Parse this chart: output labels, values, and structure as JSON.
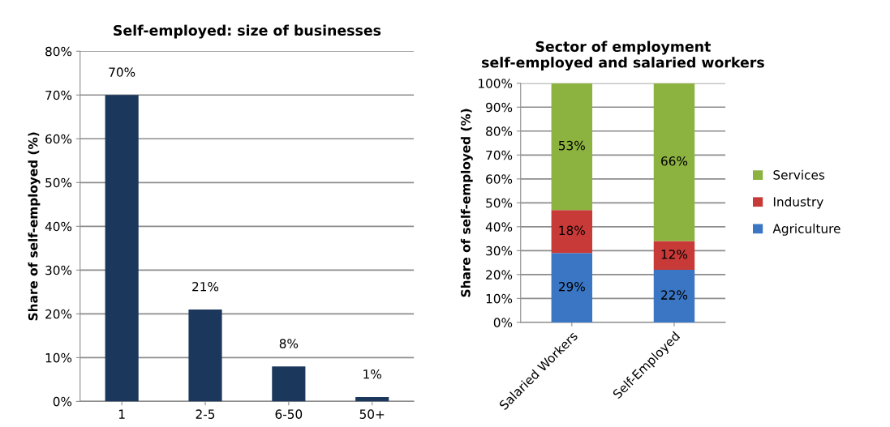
{
  "chart_data": [
    {
      "type": "bar",
      "title": "Self-employed: size of businesses",
      "ylabel": "Share of self-employed (%)",
      "categories": [
        "1",
        "2-5",
        "6-50",
        "50+"
      ],
      "series": [
        {
          "color": "#1b375c",
          "values": [
            70,
            21,
            8,
            1
          ],
          "value_labels": [
            "70%",
            "21%",
            "8%",
            "1%"
          ]
        }
      ],
      "ylim": [
        0,
        80
      ],
      "yticks": [
        {
          "value": 0,
          "label": "0%"
        },
        {
          "value": 10,
          "label": "10%"
        },
        {
          "value": 20,
          "label": "20%"
        },
        {
          "value": 30,
          "label": "30%"
        },
        {
          "value": 40,
          "label": "40%"
        },
        {
          "value": 50,
          "label": "50%"
        },
        {
          "value": 60,
          "label": "60%"
        },
        {
          "value": 70,
          "label": "70%"
        },
        {
          "value": 80,
          "label": "80%"
        }
      ],
      "grid": "y",
      "legend": false
    },
    {
      "type": "bar",
      "title": "Sector of employment\nself-employed and salaried workers",
      "ylabel": "Share of self-employed (%)",
      "categories": [
        "Salaried Workers",
        "Self-Employed"
      ],
      "stacked": true,
      "series": [
        {
          "name": "Agriculture",
          "color": "#3a76c4",
          "values": [
            29,
            22
          ],
          "value_labels": [
            "29%",
            "22%"
          ]
        },
        {
          "name": "Industry",
          "color": "#c83a38",
          "values": [
            18,
            12
          ],
          "value_labels": [
            "18%",
            "12%"
          ]
        },
        {
          "name": "Services",
          "color": "#8cb23f",
          "values": [
            53,
            66
          ],
          "value_labels": [
            "53%",
            "66%"
          ]
        }
      ],
      "ylim": [
        0,
        100
      ],
      "yticks": [
        {
          "value": 0,
          "label": "0%"
        },
        {
          "value": 10,
          "label": "10%"
        },
        {
          "value": 20,
          "label": "20%"
        },
        {
          "value": 30,
          "label": "30%"
        },
        {
          "value": 40,
          "label": "40%"
        },
        {
          "value": 50,
          "label": "50%"
        },
        {
          "value": 60,
          "label": "60%"
        },
        {
          "value": 70,
          "label": "70%"
        },
        {
          "value": 80,
          "label": "80%"
        },
        {
          "value": 90,
          "label": "90%"
        },
        {
          "value": 100,
          "label": "100%"
        }
      ],
      "grid": "y",
      "legend": "right"
    }
  ]
}
